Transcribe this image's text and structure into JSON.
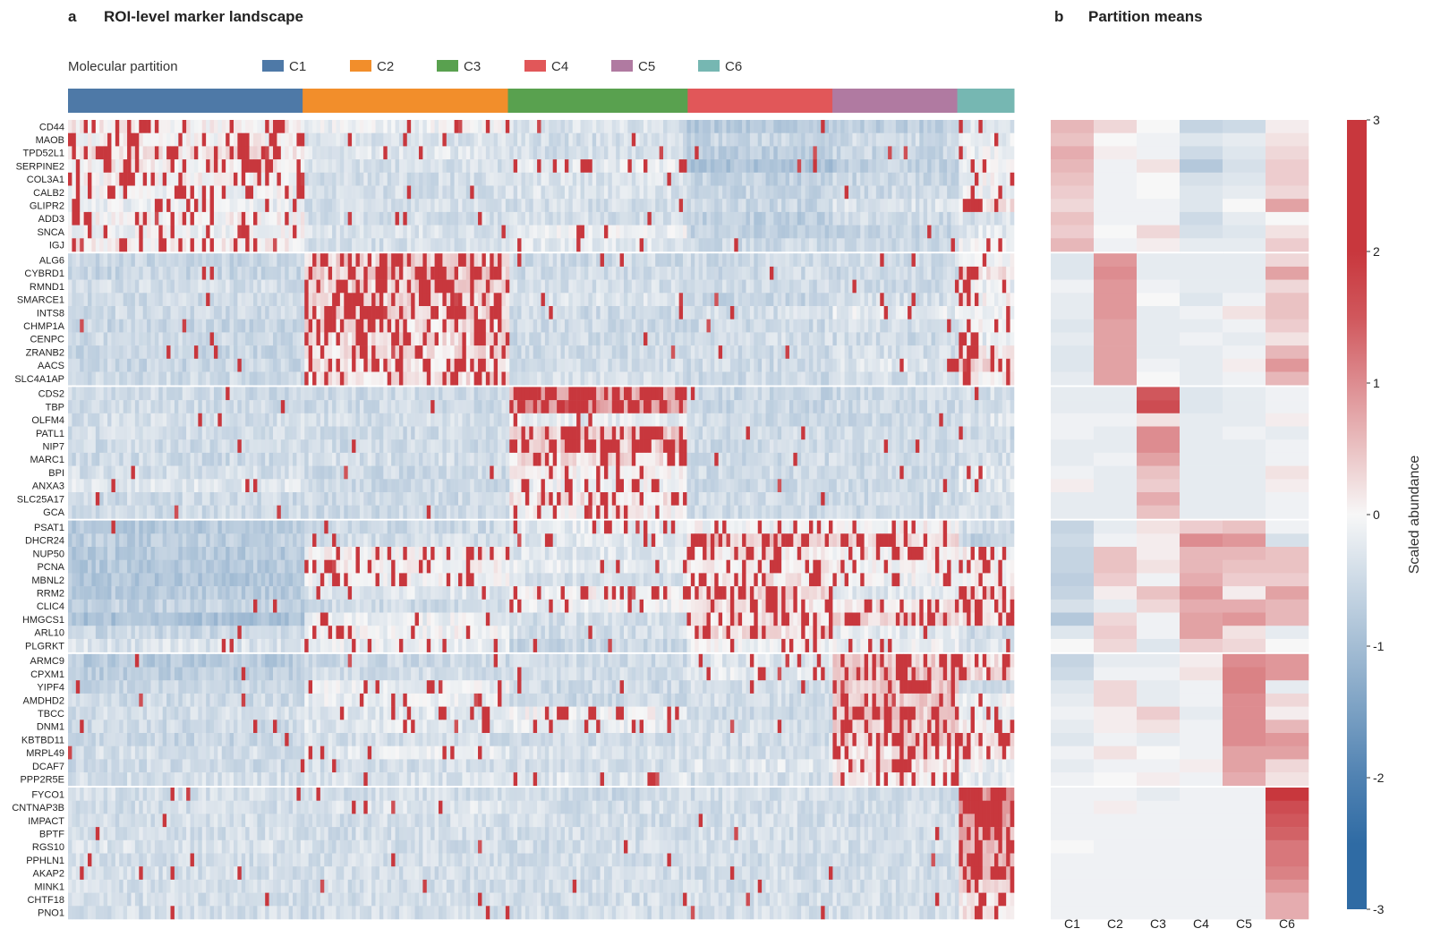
{
  "panel_a": {
    "letter": "a",
    "title": "ROI-level marker landscape"
  },
  "panel_b": {
    "letter": "b",
    "title": "Partition means"
  },
  "legend": {
    "title": "Molecular partition"
  },
  "colorbar": {
    "label": "Scaled abundance",
    "ticks": [
      "3",
      "2",
      "1",
      "0",
      "-1",
      "-2",
      "-3"
    ],
    "range": [
      -3,
      3
    ]
  },
  "colors": {
    "C1": "#4e79a7",
    "C2": "#f28e2b",
    "C3": "#59a14f",
    "C4": "#e15759",
    "C5": "#b07aa1",
    "C6": "#76b7b2",
    "high": "#c8373d",
    "mid": "#f7f7f7",
    "low": "#2f6ba4"
  },
  "chart_data": [
    {
      "type": "heatmap",
      "name": "ROI-level marker landscape",
      "partitions": [
        {
          "name": "C1",
          "roi_fraction": 0.248
        },
        {
          "name": "C2",
          "roi_fraction": 0.217
        },
        {
          "name": "C3",
          "roi_fraction": 0.19
        },
        {
          "name": "C4",
          "roi_fraction": 0.153
        },
        {
          "name": "C5",
          "roi_fraction": 0.132
        },
        {
          "name": "C6",
          "roi_fraction": 0.06
        }
      ],
      "gene_groups": [
        [
          "CD44",
          "MAOB",
          "TPD52L1",
          "SERPINE2",
          "COL3A1",
          "CALB2",
          "GLIPR2",
          "ADD3",
          "SNCA",
          "IGJ"
        ],
        [
          "ALG6",
          "CYBRD1",
          "RMND1",
          "SMARCE1",
          "INTS8",
          "CHMP1A",
          "CENPC",
          "ZRANB2",
          "AACS",
          "SLC4A1AP"
        ],
        [
          "CDS2",
          "TBP",
          "OLFM4",
          "PATL1",
          "NIP7",
          "MARC1",
          "BPI",
          "ANXA3",
          "SLC25A17",
          "GCA"
        ],
        [
          "PSAT1",
          "DHCR24",
          "NUP50",
          "PCNA",
          "MBNL2",
          "RRM2",
          "CLIC4",
          "HMGCS1",
          "ARL10",
          "PLGRKT"
        ],
        [
          "ARMC9",
          "CPXM1",
          "YIPF4",
          "AMDHD2",
          "TBCC",
          "DNM1",
          "KBTBD11",
          "MRPL49",
          "DCAF7",
          "PPP2R5E"
        ],
        [
          "FYCO1",
          "CNTNAP3B",
          "IMPACT",
          "BPTF",
          "RGS10",
          "PPHLN1",
          "AKAP2",
          "MINK1",
          "CHTF18",
          "PNO1"
        ]
      ]
    },
    {
      "type": "heatmap",
      "name": "Partition means",
      "columns": [
        "C1",
        "C2",
        "C3",
        "C4",
        "C5",
        "C6"
      ],
      "values": [
        [
          0.6,
          0.3,
          0.0,
          -0.6,
          -0.5,
          0.1
        ],
        [
          0.5,
          0.0,
          -0.1,
          -0.3,
          -0.2,
          0.2
        ],
        [
          0.7,
          0.1,
          -0.1,
          -0.5,
          -0.3,
          0.3
        ],
        [
          0.6,
          -0.1,
          0.2,
          -0.8,
          -0.4,
          0.4
        ],
        [
          0.5,
          -0.1,
          0.0,
          -0.4,
          -0.3,
          0.4
        ],
        [
          0.4,
          -0.1,
          0.0,
          -0.3,
          -0.2,
          0.3
        ],
        [
          0.3,
          -0.1,
          -0.1,
          -0.3,
          0.0,
          0.8
        ],
        [
          0.5,
          -0.1,
          -0.1,
          -0.5,
          -0.2,
          0.0
        ],
        [
          0.4,
          0.0,
          0.3,
          -0.4,
          -0.3,
          0.2
        ],
        [
          0.6,
          -0.1,
          0.1,
          -0.2,
          -0.2,
          0.4
        ],
        [
          -0.3,
          0.9,
          -0.2,
          -0.2,
          -0.2,
          0.3
        ],
        [
          -0.3,
          1.0,
          -0.2,
          -0.2,
          -0.2,
          0.8
        ],
        [
          -0.1,
          0.9,
          -0.1,
          -0.2,
          -0.2,
          0.3
        ],
        [
          -0.2,
          0.9,
          0.0,
          -0.3,
          -0.1,
          0.5
        ],
        [
          -0.2,
          0.9,
          -0.2,
          -0.1,
          0.2,
          0.5
        ],
        [
          -0.3,
          0.8,
          -0.2,
          -0.2,
          -0.1,
          0.4
        ],
        [
          -0.2,
          0.8,
          -0.2,
          -0.1,
          -0.2,
          0.2
        ],
        [
          -0.3,
          0.8,
          -0.2,
          -0.2,
          -0.1,
          0.6
        ],
        [
          -0.3,
          0.8,
          -0.1,
          -0.2,
          0.1,
          0.9
        ],
        [
          -0.2,
          0.8,
          0.0,
          -0.2,
          -0.1,
          0.6
        ],
        [
          -0.2,
          -0.2,
          1.5,
          -0.3,
          -0.2,
          -0.1
        ],
        [
          -0.2,
          -0.2,
          1.6,
          -0.3,
          -0.2,
          -0.1
        ],
        [
          -0.1,
          -0.1,
          0.2,
          -0.2,
          -0.2,
          0.1
        ],
        [
          -0.1,
          -0.2,
          1.0,
          -0.2,
          -0.1,
          -0.2
        ],
        [
          -0.2,
          -0.2,
          1.0,
          -0.2,
          -0.2,
          -0.1
        ],
        [
          -0.2,
          -0.1,
          0.8,
          -0.2,
          -0.2,
          -0.1
        ],
        [
          -0.1,
          -0.2,
          0.5,
          -0.2,
          -0.2,
          0.2
        ],
        [
          0.1,
          -0.2,
          0.4,
          -0.2,
          -0.2,
          0.1
        ],
        [
          -0.2,
          -0.2,
          0.7,
          -0.2,
          -0.2,
          -0.1
        ],
        [
          -0.2,
          -0.2,
          0.5,
          -0.2,
          -0.2,
          -0.1
        ],
        [
          -0.6,
          -0.2,
          0.2,
          0.4,
          0.5,
          -0.1
        ],
        [
          -0.5,
          -0.1,
          0.1,
          1.0,
          0.9,
          -0.4
        ],
        [
          -0.6,
          0.5,
          0.1,
          0.6,
          0.6,
          0.5
        ],
        [
          -0.6,
          0.5,
          0.2,
          0.6,
          0.5,
          0.5
        ],
        [
          -0.7,
          0.4,
          -0.1,
          0.7,
          0.4,
          0.4
        ],
        [
          -0.6,
          0.1,
          0.5,
          0.9,
          0.1,
          0.8
        ],
        [
          -0.4,
          -0.2,
          0.3,
          0.7,
          0.7,
          0.6
        ],
        [
          -0.8,
          0.3,
          -0.1,
          0.8,
          0.9,
          0.6
        ],
        [
          -0.3,
          0.4,
          -0.1,
          0.8,
          0.2,
          -0.2
        ],
        [
          0.0,
          0.3,
          -0.3,
          0.4,
          0.3,
          0.0
        ],
        [
          -0.6,
          -0.2,
          -0.2,
          0.1,
          1.0,
          0.9
        ],
        [
          -0.5,
          -0.1,
          -0.1,
          0.2,
          1.1,
          0.9
        ],
        [
          -0.3,
          0.3,
          -0.2,
          -0.1,
          1.1,
          -0.2
        ],
        [
          -0.2,
          0.3,
          -0.2,
          -0.1,
          1.0,
          0.3
        ],
        [
          -0.1,
          0.1,
          0.4,
          -0.2,
          1.0,
          0.1
        ],
        [
          -0.2,
          0.1,
          0.2,
          -0.1,
          1.0,
          0.6
        ],
        [
          -0.3,
          -0.1,
          -0.2,
          -0.1,
          1.0,
          0.9
        ],
        [
          -0.1,
          0.2,
          0.0,
          -0.1,
          0.8,
          0.8
        ],
        [
          -0.2,
          -0.1,
          -0.1,
          0.1,
          0.8,
          0.3
        ],
        [
          -0.1,
          0.0,
          0.1,
          -0.1,
          0.7,
          0.2
        ],
        [
          -0.1,
          -0.1,
          -0.2,
          -0.1,
          -0.1,
          1.8
        ],
        [
          -0.1,
          0.1,
          -0.1,
          -0.1,
          -0.1,
          1.6
        ],
        [
          -0.1,
          -0.1,
          -0.1,
          -0.1,
          -0.1,
          1.5
        ],
        [
          -0.1,
          -0.1,
          -0.1,
          -0.1,
          -0.1,
          1.4
        ],
        [
          0.0,
          -0.1,
          -0.1,
          -0.1,
          -0.1,
          1.2
        ],
        [
          -0.1,
          -0.1,
          -0.1,
          -0.1,
          -0.1,
          1.2
        ],
        [
          -0.1,
          -0.1,
          -0.1,
          -0.1,
          -0.1,
          1.1
        ],
        [
          -0.1,
          -0.1,
          -0.1,
          -0.1,
          -0.1,
          0.9
        ],
        [
          -0.1,
          -0.1,
          -0.1,
          -0.1,
          -0.1,
          0.7
        ],
        [
          -0.1,
          -0.1,
          -0.1,
          -0.1,
          -0.1,
          0.7
        ]
      ]
    }
  ]
}
